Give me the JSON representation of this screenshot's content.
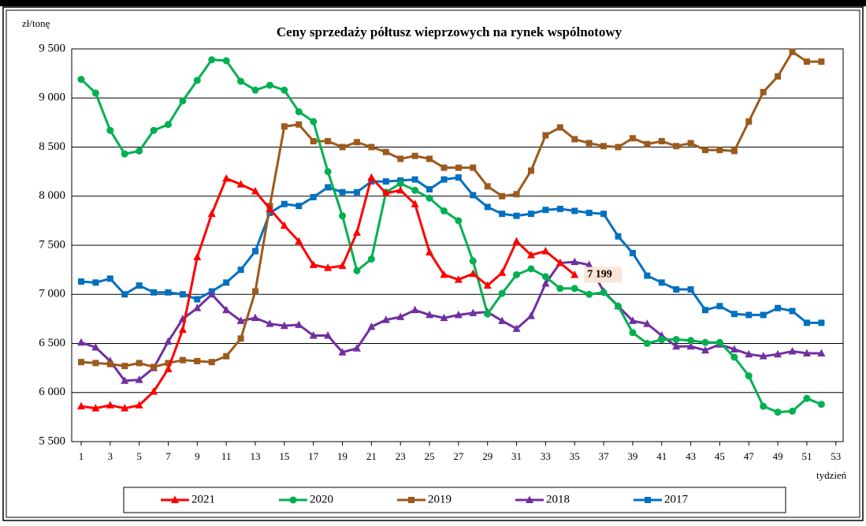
{
  "chart_data": {
    "type": "line",
    "title": "Ceny sprzedaży półtusz wieprzowych na rynek wspólnotowy",
    "y_label": "zł/tonę",
    "x_label": "tydzień",
    "x": [
      1,
      2,
      3,
      4,
      5,
      6,
      7,
      8,
      9,
      10,
      11,
      12,
      13,
      14,
      15,
      16,
      17,
      18,
      19,
      20,
      21,
      22,
      23,
      24,
      25,
      26,
      27,
      28,
      29,
      30,
      31,
      32,
      33,
      34,
      35,
      36,
      37,
      38,
      39,
      40,
      41,
      42,
      43,
      44,
      45,
      46,
      47,
      48,
      49,
      50,
      51,
      52
    ],
    "xlim": [
      0.35,
      53.5
    ],
    "xticks": [
      1,
      3,
      5,
      7,
      9,
      11,
      13,
      15,
      17,
      19,
      21,
      23,
      25,
      27,
      29,
      31,
      33,
      35,
      37,
      39,
      41,
      43,
      45,
      47,
      49,
      51,
      53
    ],
    "ylim": [
      5500,
      9500
    ],
    "yticks": [
      {
        "value": 5500,
        "label": "5 500"
      },
      {
        "value": 6000,
        "label": "6 000"
      },
      {
        "value": 6500,
        "label": "6 500"
      },
      {
        "value": 7000,
        "label": "7 000"
      },
      {
        "value": 7500,
        "label": "7 500"
      },
      {
        "value": 8000,
        "label": "8 000"
      },
      {
        "value": 8500,
        "label": "8 500"
      },
      {
        "value": 9000,
        "label": "9 000"
      },
      {
        "value": 9500,
        "label": "9 500"
      }
    ],
    "grid": true,
    "series": [
      {
        "name": "2021",
        "color": "#ff0000",
        "marker": "triangle",
        "values": [
          5860,
          5840,
          5870,
          5840,
          5870,
          6010,
          6240,
          6640,
          7380,
          7820,
          8180,
          8120,
          8050,
          7870,
          7700,
          7540,
          7300,
          7270,
          7290,
          7630,
          8190,
          8030,
          8060,
          7920,
          7430,
          7200,
          7150,
          7210,
          7090,
          7220,
          7540,
          7400,
          7440,
          7320,
          7199,
          null,
          null,
          null,
          null,
          null,
          null,
          null,
          null,
          null,
          null,
          null,
          null,
          null,
          null,
          null,
          null,
          null
        ],
        "value_labels": [
          null,
          null,
          null,
          null,
          null,
          null,
          null,
          null,
          null,
          null,
          null,
          null,
          null,
          null,
          null,
          null,
          null,
          null,
          null,
          null,
          null,
          null,
          null,
          null,
          null,
          null,
          null,
          null,
          null,
          null,
          null,
          null,
          null,
          null,
          "7 199",
          null,
          null,
          null,
          null,
          null,
          null,
          null,
          null,
          null,
          null,
          null,
          null,
          null,
          null,
          null,
          null,
          null
        ]
      },
      {
        "name": "2020",
        "color": "#00b050",
        "marker": "circle",
        "values": [
          9190,
          9050,
          8670,
          8430,
          8460,
          8670,
          8730,
          8970,
          9180,
          9390,
          9380,
          9170,
          9080,
          9130,
          9080,
          8860,
          8760,
          8250,
          7800,
          7240,
          7360,
          8040,
          8130,
          8060,
          7980,
          7850,
          7750,
          7340,
          6800,
          7010,
          7200,
          7260,
          7180,
          7060,
          7060,
          7000,
          7020,
          6880,
          6610,
          6500,
          6540,
          6540,
          6530,
          6510,
          6510,
          6360,
          6170,
          5860,
          5800,
          5810,
          5940,
          5880
        ]
      },
      {
        "name": "2019",
        "color": "#9c5a1c",
        "marker": "square",
        "values": [
          6310,
          6300,
          6290,
          6270,
          6300,
          6260,
          6300,
          6330,
          6320,
          6310,
          6370,
          6550,
          7030,
          7900,
          8710,
          8730,
          8560,
          8560,
          8500,
          8550,
          8500,
          8450,
          8380,
          8410,
          8380,
          8290,
          8290,
          8290,
          8100,
          8000,
          8020,
          8260,
          8620,
          8700,
          8580,
          8540,
          8510,
          8500,
          8590,
          8530,
          8560,
          8510,
          8540,
          8470,
          8470,
          8460,
          8760,
          9060,
          9220,
          9470,
          9370,
          9370
        ]
      },
      {
        "name": "2018",
        "color": "#7030a0",
        "marker": "triangle",
        "values": [
          6510,
          6460,
          6320,
          6120,
          6130,
          6250,
          6520,
          6750,
          6860,
          7000,
          6840,
          6730,
          6760,
          6700,
          6680,
          6690,
          6580,
          6580,
          6410,
          6450,
          6670,
          6740,
          6770,
          6840,
          6790,
          6760,
          6790,
          6810,
          6820,
          6730,
          6650,
          6780,
          7110,
          7320,
          7330,
          7300,
          7030,
          6880,
          6730,
          6700,
          6580,
          6470,
          6470,
          6430,
          6490,
          6440,
          6390,
          6370,
          6390,
          6420,
          6400,
          6400
        ]
      },
      {
        "name": "2017",
        "color": "#0070c0",
        "marker": "square",
        "values": [
          7130,
          7120,
          7160,
          7000,
          7090,
          7020,
          7020,
          7000,
          6950,
          7030,
          7120,
          7250,
          7440,
          7830,
          7920,
          7900,
          7990,
          8090,
          8040,
          8040,
          8150,
          8150,
          8160,
          8170,
          8070,
          8170,
          8190,
          8010,
          7890,
          7820,
          7800,
          7820,
          7860,
          7870,
          7850,
          7830,
          7820,
          7590,
          7420,
          7190,
          7120,
          7050,
          7050,
          6840,
          6880,
          6800,
          6790,
          6790,
          6860,
          6830,
          6710,
          6710
        ]
      }
    ]
  }
}
